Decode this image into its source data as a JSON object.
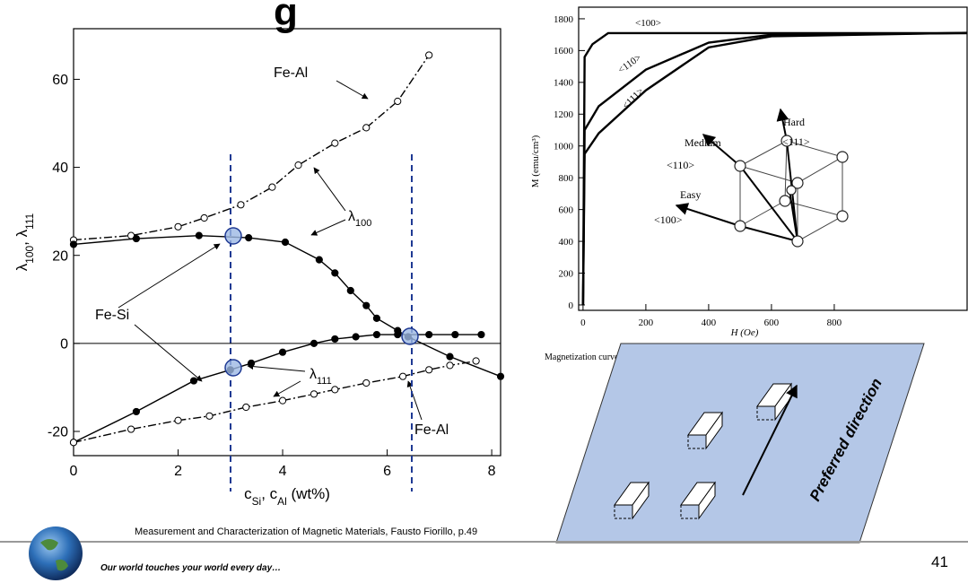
{
  "title": "g",
  "left_chart": {
    "type": "line",
    "x_label": [
      "c",
      "Si",
      ", c",
      "Al",
      " (wt%)"
    ],
    "y_label": [
      "λ",
      "100",
      ", λ",
      "111"
    ],
    "xlim": [
      0,
      8.17
    ],
    "ylim": [
      -25.5,
      71.5
    ],
    "xticks": [
      0,
      2,
      4,
      6,
      8
    ],
    "yticks": [
      -20,
      0,
      20,
      40,
      60
    ],
    "series": [
      {
        "color": "#000000",
        "marker": "open",
        "dash": "dashdot",
        "x": [
          0,
          1.1,
          2,
          2.5,
          3.2,
          3.8,
          4.3,
          5,
          5.6,
          6.2,
          6.8
        ],
        "values": [
          23.5,
          24.5,
          26.5,
          28.5,
          31.5,
          35.5,
          40.5,
          45.5,
          49,
          55,
          65.5
        ]
      },
      {
        "color": "#000000",
        "marker": "filled",
        "dash": "solid",
        "x": [
          0,
          1.2,
          2.4,
          3.35,
          4.05,
          4.7,
          5,
          5.3,
          5.6,
          5.8,
          6.2,
          6.4,
          7.2,
          8.17
        ],
        "values": [
          22.5,
          23.8,
          24.5,
          24,
          23,
          19,
          16,
          12,
          8.6,
          5.7,
          2.9,
          1.5,
          -3,
          -7.5
        ]
      },
      {
        "color": "#000000",
        "marker": "filled",
        "dash": "solid",
        "x": [
          0,
          1.2,
          2.3,
          3,
          3.4,
          4,
          4.6,
          5,
          5.4,
          5.8,
          6.2,
          6.8,
          7.3,
          7.8
        ],
        "values": [
          -22.5,
          -15.5,
          -8.5,
          -6,
          -4.5,
          -2,
          0,
          1,
          1.5,
          2,
          2,
          2,
          2,
          2
        ]
      },
      {
        "color": "#000000",
        "marker": "open",
        "dash": "dashdot",
        "x": [
          0,
          1.1,
          2,
          2.6,
          3.3,
          4,
          4.6,
          5,
          5.6,
          6.3,
          6.8,
          7.2,
          7.7
        ],
        "values": [
          -22.5,
          -19.5,
          -17.5,
          -16.5,
          -14.5,
          -13,
          -11.5,
          -10.5,
          -9,
          -7.5,
          -6,
          -5,
          -4
        ]
      }
    ],
    "annotations": [
      {
        "text": "Fe-Al"
      },
      {
        "text": "λ",
        "sub": "100"
      },
      {
        "text": "Fe-Si"
      },
      {
        "text": "λ",
        "sub": "111"
      },
      {
        "text": "Fe-Al"
      }
    ]
  },
  "right_chart": {
    "type": "line",
    "x_label": "H (Oe)",
    "y_label": "M (emu/cm³)",
    "xlim": [
      -14,
      1223
    ],
    "ylim": [
      -34,
      1873
    ],
    "xticks": [
      0,
      200,
      400,
      600,
      800
    ],
    "yticks": [
      0,
      200,
      400,
      600,
      800,
      1000,
      1200,
      1400,
      1600,
      1800
    ],
    "series": [
      {
        "name": "<100>",
        "color": "#000000",
        "x": [
          0,
          5,
          30,
          80,
          1223
        ],
        "values": [
          0,
          1560,
          1640,
          1710,
          1710
        ]
      },
      {
        "name": "<110>",
        "color": "#000000",
        "x": [
          0,
          5,
          50,
          200,
          400,
          600,
          1223
        ],
        "values": [
          0,
          1100,
          1250,
          1480,
          1650,
          1700,
          1710
        ]
      },
      {
        "name": "<111>",
        "color": "#000000",
        "x": [
          0,
          5,
          50,
          200,
          400,
          600,
          1223
        ],
        "values": [
          0,
          950,
          1080,
          1350,
          1620,
          1690,
          1712
        ]
      }
    ],
    "cube_labels": [
      "Hard",
      "<111>",
      "Medium",
      "<110>",
      "Easy",
      "<100>"
    ]
  },
  "caption": "Magnetization curves for single crystals of iron (by Honda and Kaya)",
  "preferred_direction": "Preferred direction",
  "source": "Measurement and Characterization of Magnetic Materials, Fausto Fiorillo, p.49",
  "footer": "Our world touches your world every day…",
  "page_number": "41"
}
